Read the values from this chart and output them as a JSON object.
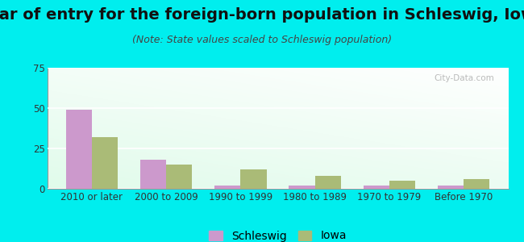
{
  "title": "Year of entry for the foreign-born population in Schleswig, Iowa",
  "subtitle": "(Note: State values scaled to Schleswig population)",
  "categories": [
    "2010 or later",
    "2000 to 2009",
    "1990 to 1999",
    "1980 to 1989",
    "1970 to 1979",
    "Before 1970"
  ],
  "schleswig_values": [
    49,
    18,
    2,
    2,
    2,
    2
  ],
  "iowa_values": [
    32,
    15,
    12,
    8,
    5,
    6
  ],
  "schleswig_color": "#cc99cc",
  "iowa_color": "#aabb77",
  "ylim": [
    0,
    75
  ],
  "yticks": [
    0,
    25,
    50,
    75
  ],
  "bg_color": "#00eeee",
  "bar_width": 0.35,
  "title_fontsize": 14,
  "subtitle_fontsize": 9,
  "tick_fontsize": 8.5,
  "legend_fontsize": 10
}
